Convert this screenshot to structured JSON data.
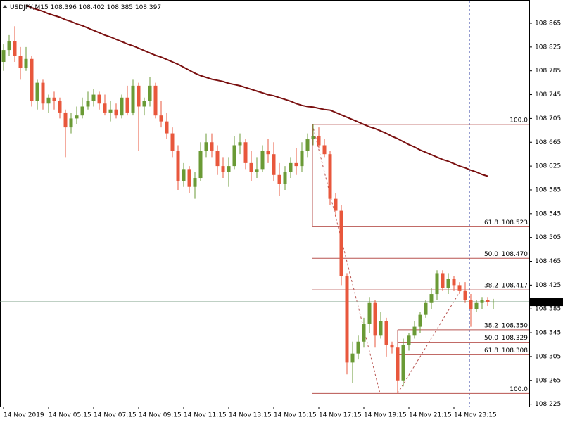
{
  "chart_data": {
    "type": "candlestick",
    "symbol": "USDJPY,M15",
    "categories": [
      "14 Nov 2019",
      null,
      null,
      null,
      null,
      null,
      null,
      null,
      "14 Nov 05:15",
      null,
      null,
      null,
      null,
      null,
      null,
      null,
      "14 Nov 07:15",
      null,
      null,
      null,
      null,
      null,
      null,
      null,
      "14 Nov 09:15",
      null,
      null,
      null,
      null,
      null,
      null,
      null,
      "14 Nov 11:15",
      null,
      null,
      null,
      null,
      null,
      null,
      null,
      "14 Nov 13:15",
      null,
      null,
      null,
      null,
      null,
      null,
      null,
      "14 Nov 15:15",
      null,
      null,
      null,
      null,
      null,
      null,
      null,
      "14 Nov 17:15",
      null,
      null,
      null,
      null,
      null,
      null,
      null,
      "14 Nov 19:15",
      null,
      null,
      null,
      null,
      null,
      null,
      null,
      "14 Nov 21:15",
      null,
      null,
      null,
      null,
      null,
      null,
      null,
      "14 Nov 23:15",
      null,
      null,
      null,
      null,
      null,
      null,
      null
    ],
    "open": [
      108.8,
      108.82,
      108.835,
      108.81,
      108.79,
      108.805,
      108.735,
      108.765,
      108.73,
      108.74,
      108.735,
      108.715,
      108.69,
      108.705,
      108.71,
      108.725,
      108.735,
      108.745,
      108.73,
      108.715,
      108.72,
      108.71,
      108.74,
      108.715,
      108.76,
      108.725,
      108.735,
      108.76,
      108.71,
      108.7,
      108.68,
      108.65,
      108.6,
      108.62,
      108.59,
      108.605,
      108.65,
      108.665,
      108.65,
      108.625,
      108.615,
      108.625,
      108.66,
      108.665,
      108.63,
      108.615,
      108.62,
      108.65,
      108.645,
      108.61,
      108.595,
      108.615,
      108.63,
      108.625,
      108.65,
      108.67,
      108.675,
      108.66,
      108.645,
      108.57,
      108.55,
      108.44,
      108.295,
      108.31,
      108.33,
      108.36,
      108.395,
      108.34,
      108.365,
      108.325,
      108.32,
      108.265,
      108.325,
      108.34,
      108.355,
      108.375,
      108.395,
      108.41,
      108.445,
      108.42,
      108.435,
      108.425,
      108.415,
      108.4,
      108.385,
      108.395,
      108.4,
      108.396
    ],
    "high": [
      108.83,
      108.845,
      108.86,
      108.825,
      108.825,
      108.81,
      108.77,
      108.77,
      108.745,
      108.75,
      108.74,
      108.72,
      108.715,
      108.725,
      108.74,
      108.75,
      108.755,
      108.75,
      108.745,
      108.735,
      108.73,
      108.745,
      108.76,
      108.77,
      108.765,
      108.74,
      108.775,
      108.765,
      108.735,
      108.715,
      108.69,
      108.66,
      108.63,
      108.625,
      108.615,
      108.665,
      108.68,
      108.68,
      108.66,
      108.64,
      108.64,
      108.675,
      108.68,
      108.67,
      108.65,
      108.64,
      108.66,
      108.67,
      108.665,
      108.63,
      108.625,
      108.64,
      108.655,
      108.665,
      108.68,
      108.695,
      108.69,
      108.67,
      108.65,
      108.58,
      108.56,
      108.445,
      108.33,
      108.34,
      108.37,
      108.405,
      108.4,
      108.38,
      108.37,
      108.33,
      108.325,
      108.335,
      108.345,
      108.365,
      108.38,
      108.4,
      108.42,
      108.45,
      108.45,
      108.445,
      108.44,
      108.43,
      108.43,
      108.41,
      108.4,
      108.405,
      108.405,
      108.402
    ],
    "low": [
      108.785,
      108.81,
      108.8,
      108.77,
      108.785,
      108.725,
      108.72,
      108.72,
      108.715,
      108.72,
      108.705,
      108.64,
      108.68,
      108.695,
      108.705,
      108.72,
      108.725,
      108.72,
      108.71,
      108.7,
      108.705,
      108.705,
      108.71,
      108.71,
      108.65,
      108.71,
      108.725,
      108.705,
      108.69,
      108.67,
      108.64,
      108.585,
      108.59,
      108.58,
      108.57,
      108.6,
      108.64,
      108.64,
      108.61,
      108.605,
      108.59,
      108.62,
      108.645,
      108.62,
      108.6,
      108.605,
      108.615,
      108.63,
      108.6,
      108.575,
      108.585,
      108.605,
      108.61,
      108.615,
      108.64,
      108.66,
      108.655,
      108.64,
      108.56,
      108.54,
      108.425,
      108.275,
      108.26,
      108.3,
      108.32,
      108.345,
      108.32,
      108.335,
      108.305,
      108.31,
      108.243,
      108.255,
      108.315,
      108.335,
      108.345,
      108.37,
      108.385,
      108.4,
      108.415,
      108.41,
      108.415,
      108.41,
      108.395,
      108.355,
      108.38,
      108.385,
      108.39,
      108.385
    ],
    "close": [
      108.82,
      108.835,
      108.81,
      108.79,
      108.805,
      108.735,
      108.765,
      108.73,
      108.74,
      108.735,
      108.715,
      108.69,
      108.705,
      108.71,
      108.725,
      108.735,
      108.745,
      108.73,
      108.715,
      108.72,
      108.71,
      108.74,
      108.715,
      108.76,
      108.725,
      108.735,
      108.76,
      108.71,
      108.7,
      108.68,
      108.65,
      108.6,
      108.62,
      108.59,
      108.605,
      108.65,
      108.665,
      108.65,
      108.625,
      108.615,
      108.625,
      108.66,
      108.665,
      108.63,
      108.615,
      108.62,
      108.65,
      108.645,
      108.61,
      108.595,
      108.615,
      108.63,
      108.625,
      108.65,
      108.67,
      108.675,
      108.66,
      108.645,
      108.57,
      108.55,
      108.44,
      108.295,
      108.31,
      108.33,
      108.36,
      108.395,
      108.34,
      108.365,
      108.325,
      108.32,
      108.265,
      108.325,
      108.34,
      108.355,
      108.375,
      108.395,
      108.41,
      108.445,
      108.42,
      108.435,
      108.425,
      108.415,
      108.4,
      108.385,
      108.395,
      108.4,
      108.396,
      108.397
    ],
    "up_color": "#6a9a35",
    "down_color": "#e8573c",
    "moving_average": {
      "color": "#7a1010",
      "values": [
        null,
        null,
        null,
        null,
        108.895,
        108.891,
        108.888,
        108.885,
        108.881,
        108.878,
        108.875,
        108.871,
        108.868,
        108.864,
        108.861,
        108.857,
        108.853,
        108.849,
        108.845,
        108.842,
        108.838,
        108.834,
        108.83,
        108.827,
        108.823,
        108.819,
        108.815,
        108.811,
        108.808,
        108.804,
        108.8,
        108.796,
        108.791,
        108.786,
        108.781,
        108.777,
        108.774,
        108.771,
        108.769,
        108.767,
        108.764,
        108.762,
        108.76,
        108.757,
        108.754,
        108.751,
        108.748,
        108.745,
        108.743,
        108.74,
        108.737,
        108.734,
        108.73,
        108.727,
        108.725,
        108.724,
        108.722,
        108.72,
        108.719,
        108.715,
        108.711,
        108.707,
        108.703,
        108.699,
        108.695,
        108.691,
        108.688,
        108.684,
        108.68,
        108.675,
        108.671,
        108.666,
        108.661,
        108.657,
        108.652,
        108.648,
        108.644,
        108.64,
        108.636,
        108.633,
        108.629,
        108.625,
        108.622,
        108.618,
        108.615,
        108.611,
        108.608,
        null
      ]
    },
    "fibonacci": [
      {
        "color": "#b85450",
        "levels": [
          {
            "level": "100.0",
            "value": 108.695
          },
          {
            "level": "61.8",
            "value": 108.523,
            "label": "108.523"
          },
          {
            "level": "50.0",
            "value": 108.47,
            "label": "108.470"
          },
          {
            "level": "38.2",
            "value": 108.417,
            "label": "108.417"
          }
        ]
      },
      {
        "color": "#b85450",
        "levels": [
          {
            "level": "38.2",
            "value": 108.35,
            "label": "108.350"
          },
          {
            "level": "50.0",
            "value": 108.329,
            "label": "108.329"
          },
          {
            "level": "61.8",
            "value": 108.308,
            "label": "108.308"
          },
          {
            "level": "100.0",
            "value": 108.243
          }
        ]
      }
    ],
    "ylim": [
      108.221,
      108.904
    ],
    "yticks": [
      108.865,
      108.825,
      108.785,
      108.745,
      108.705,
      108.665,
      108.625,
      108.585,
      108.545,
      108.505,
      108.465,
      108.425,
      108.385,
      108.345,
      108.305,
      108.265,
      108.225
    ]
  }
}
